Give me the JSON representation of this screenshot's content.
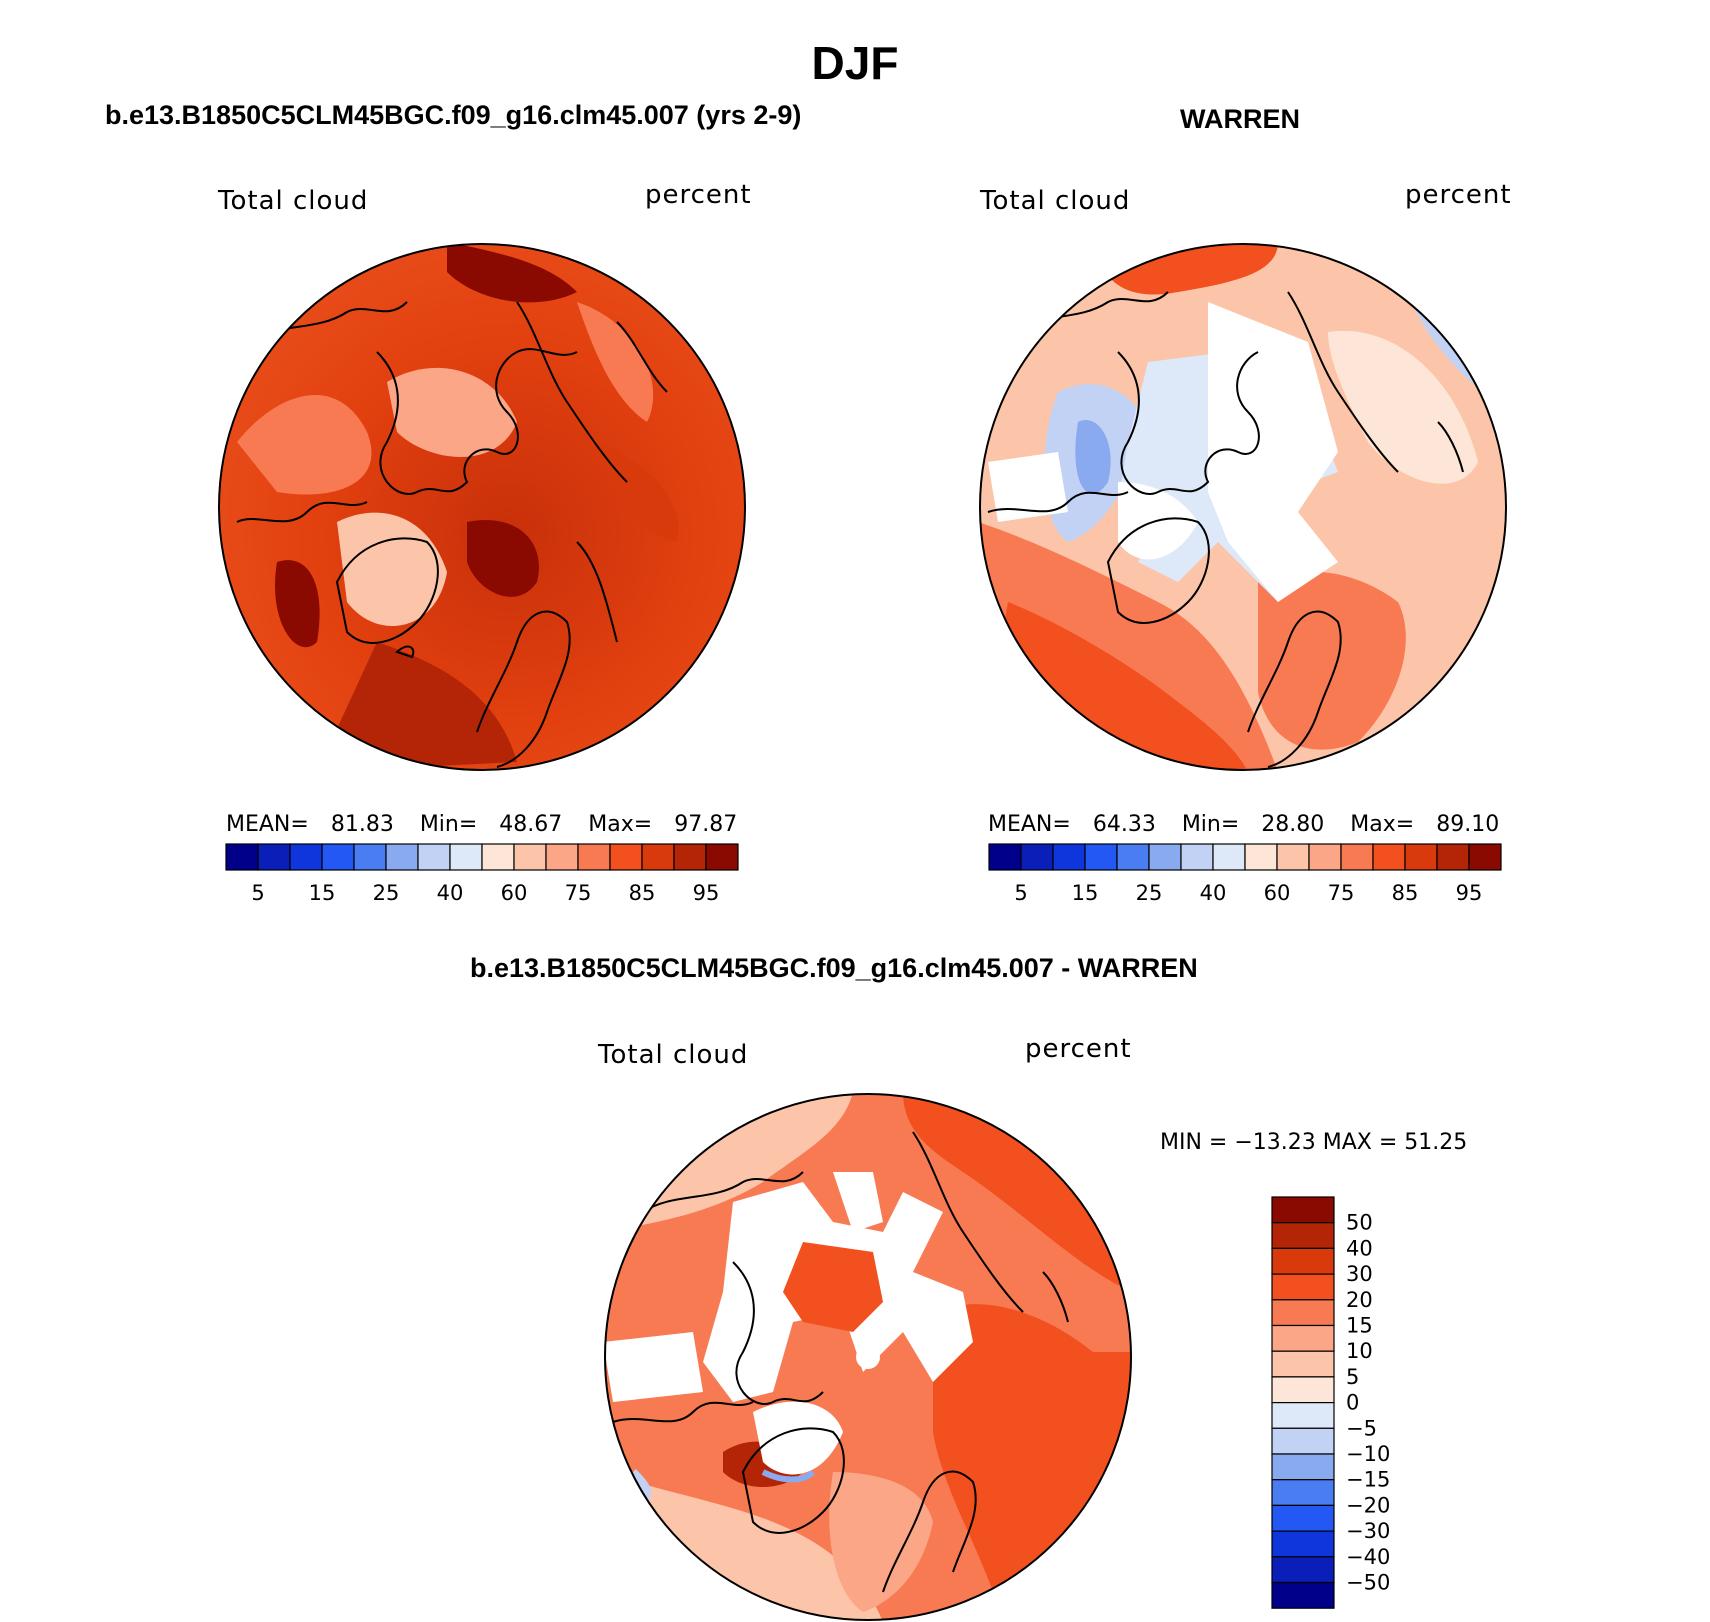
{
  "title": "DJF",
  "panels": [
    {
      "id": "model",
      "heading": "b.e13.B1850C5CLM45BGC.f09_g16.clm45.007 (yrs 2-9)",
      "variable": "Total cloud",
      "units": "percent",
      "stats": {
        "mean_label": "MEAN=",
        "mean": "81.83",
        "min_label": "Min=",
        "min": "48.67",
        "max_label": "Max=",
        "max": "97.87"
      },
      "colorbar_ticks": [
        "5",
        "15",
        "25",
        "40",
        "60",
        "75",
        "85",
        "95"
      ]
    },
    {
      "id": "obs",
      "heading": "WARREN",
      "variable": "Total cloud",
      "units": "percent",
      "stats": {
        "mean_label": "MEAN=",
        "mean": "64.33",
        "min_label": "Min=",
        "min": "28.80",
        "max_label": "Max=",
        "max": "89.10"
      },
      "colorbar_ticks": [
        "5",
        "15",
        "25",
        "40",
        "60",
        "75",
        "85",
        "95"
      ]
    }
  ],
  "diff": {
    "heading": "b.e13.B1850C5CLM45BGC.f09_g16.clm45.007 - WARREN",
    "variable": "Total cloud",
    "units": "percent",
    "minmax": "MIN = −13.23 MAX =  51.25",
    "colorbar_ticks": [
      "50",
      "40",
      "30",
      "20",
      "15",
      "10",
      "5",
      "0",
      "−5",
      "−10",
      "−15",
      "−20",
      "−30",
      "−40",
      "−50"
    ]
  },
  "colors": {
    "abs_scale": [
      "#00008b",
      "#0a1fb8",
      "#0f35dc",
      "#2458f5",
      "#4a7cf2",
      "#8aaaf0",
      "#c2d2f5",
      "#dde9f8",
      "#fde6d7",
      "#fcc5aa",
      "#fba686",
      "#f87a52",
      "#f2501e",
      "#d93a0b",
      "#b42407",
      "#8a0a02"
    ],
    "diff_scale": [
      "#8a0a02",
      "#b42407",
      "#d93a0b",
      "#f2501e",
      "#f87a52",
      "#fba686",
      "#fcc5aa",
      "#fde6d7",
      "#dde9f8",
      "#c2d2f5",
      "#8aaaf0",
      "#4a7cf2",
      "#2458f5",
      "#0f35dc",
      "#0a1fb8",
      "#00008b"
    ]
  }
}
